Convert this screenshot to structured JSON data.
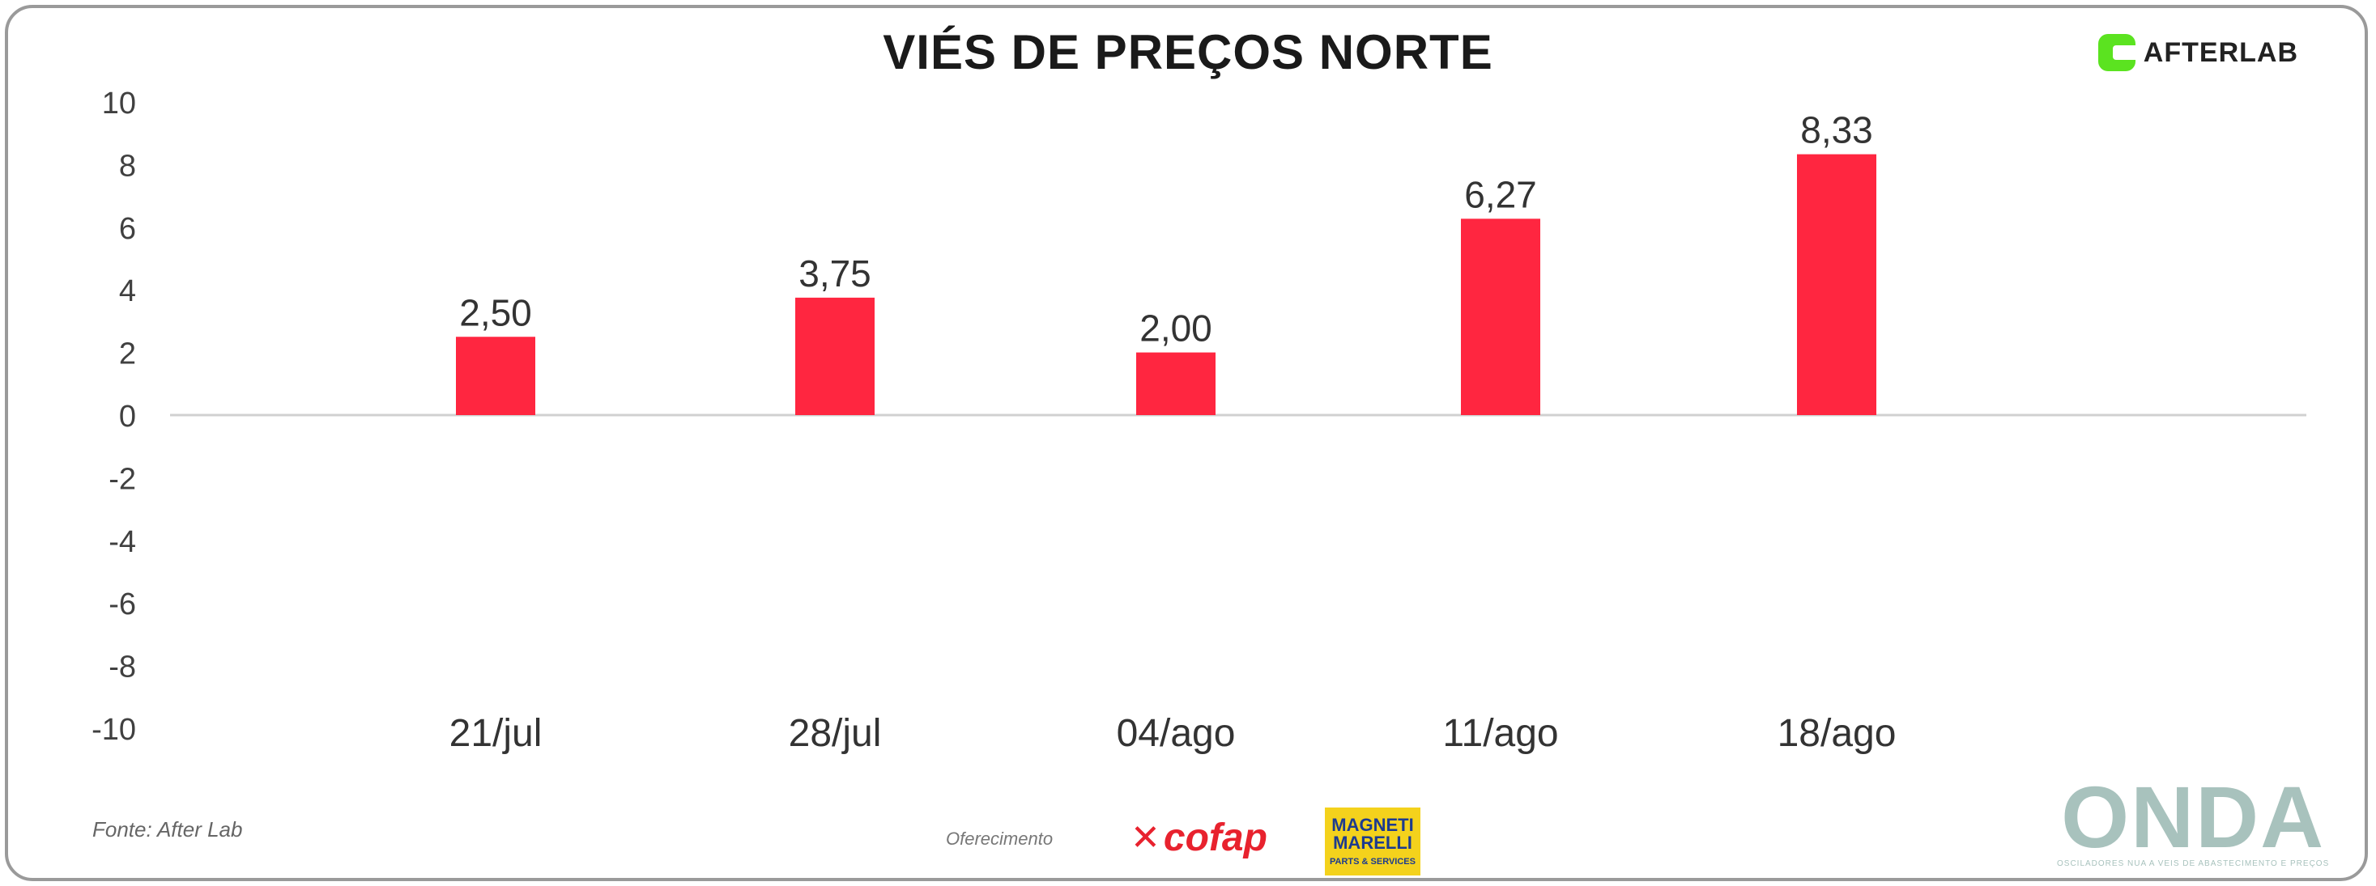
{
  "header": {
    "title": "VIÉS DE PREÇOS NORTE",
    "brand": "AFTERLAB"
  },
  "footer": {
    "source": "Fonte: After Lab",
    "sponsor_label": "Oferecimento",
    "sponsor1": "cofap",
    "sponsor2_name": "MAGNETI MARELLI",
    "sponsor2_sub": "PARTS & SERVICES",
    "watermark": "ONDA",
    "watermark_tagline": "OSCILADORES NUA A VEIS DE ABASTECIMENTO E PREÇOS"
  },
  "colors": {
    "bar": "#ff2640",
    "axis": "#d0d0d0",
    "text": "#404040",
    "brand_green": "#5be320"
  },
  "chart_data": {
    "type": "bar",
    "title": "VIÉS DE PREÇOS NORTE",
    "categories": [
      "21/jul",
      "28/jul",
      "04/ago",
      "11/ago",
      "18/ago"
    ],
    "values": [
      2.5,
      3.75,
      2.0,
      6.27,
      8.33
    ],
    "value_labels": [
      "2,50",
      "3,75",
      "2,00",
      "6,27",
      "8,33"
    ],
    "ylim": [
      -10,
      10
    ],
    "yticks": [
      10,
      8,
      6,
      4,
      2,
      0,
      -2,
      -4,
      -6,
      -8,
      -10
    ],
    "xlabel": "",
    "ylabel": "",
    "grid": false,
    "legend": "none"
  }
}
